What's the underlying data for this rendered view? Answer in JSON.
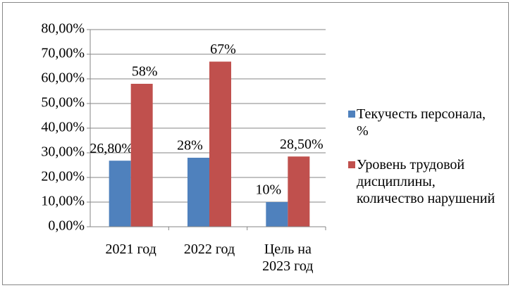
{
  "chart_data": {
    "type": "bar",
    "categories": [
      "2021 год",
      "2022 год",
      "Цель на 2023 год"
    ],
    "series": [
      {
        "name": "Текучесть персонала, %",
        "color": "#4f81bd",
        "values": [
          26.8,
          28,
          10
        ],
        "value_labels": [
          "26,80%",
          "28%",
          "10%"
        ]
      },
      {
        "name": "Уровень трудовой дисциплины, количество нарушений",
        "color": "#c0504d",
        "values": [
          58,
          67,
          28.5
        ],
        "value_labels": [
          "58%",
          "67%",
          "28,50%"
        ]
      }
    ],
    "ylim": [
      0,
      80
    ],
    "yticks": [
      {
        "value": 0,
        "label": "0,00%"
      },
      {
        "value": 10,
        "label": "10,00%"
      },
      {
        "value": 20,
        "label": "20,00%"
      },
      {
        "value": 30,
        "label": "30,00%"
      },
      {
        "value": 40,
        "label": "40,00%"
      },
      {
        "value": 50,
        "label": "50,00%"
      },
      {
        "value": 60,
        "label": "60,00%"
      },
      {
        "value": 70,
        "label": "70,00%"
      },
      {
        "value": 80,
        "label": "80,00%"
      }
    ],
    "grid": true,
    "legend": "right"
  }
}
